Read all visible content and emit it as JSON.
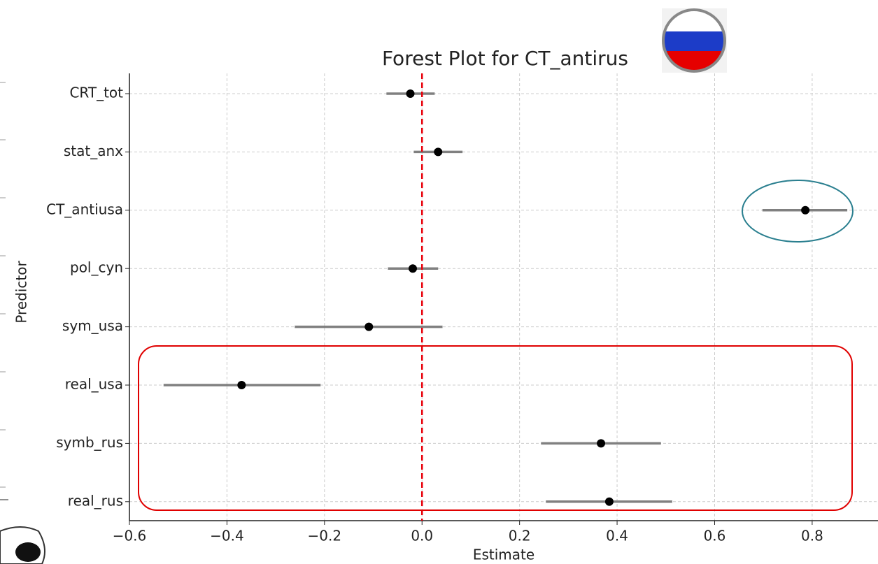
{
  "chart_data": {
    "type": "forest",
    "title": "Forest Plot for CT_antirus",
    "x_label": "Estimate",
    "y_label": "Predictor",
    "categories": [
      "CRT_tot",
      "stat_anx",
      "CT_antiusa",
      "pol_cyn",
      "sym_usa",
      "real_usa",
      "symb_rus",
      "real_rus"
    ],
    "estimates": [
      -0.024,
      0.033,
      0.786,
      -0.019,
      -0.109,
      -0.37,
      0.367,
      0.384
    ],
    "ci_low": [
      -0.073,
      -0.017,
      0.698,
      -0.07,
      -0.261,
      -0.53,
      0.244,
      0.254
    ],
    "ci_high": [
      0.026,
      0.083,
      0.872,
      0.033,
      0.042,
      -0.208,
      0.49,
      0.513
    ],
    "xlim": [
      -0.6,
      0.935
    ],
    "xticks": [
      {
        "value": -0.6,
        "label": "−0.6"
      },
      {
        "value": -0.4,
        "label": "−0.4"
      },
      {
        "value": -0.2,
        "label": "−0.2"
      },
      {
        "value": 0,
        "label": "0.0"
      },
      0.2,
      0.4,
      0.6,
      0.8
    ],
    "reference_line": 0,
    "grid": true,
    "point_color": "#000000",
    "ci_color": "#808080",
    "reference_color": "#e8000b"
  }
}
